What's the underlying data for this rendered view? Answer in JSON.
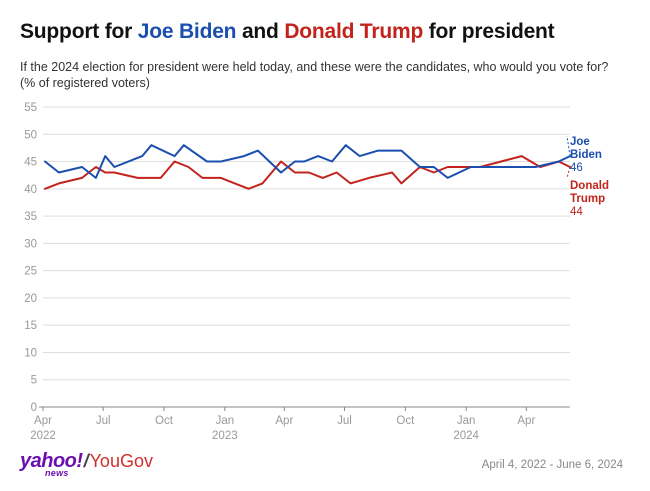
{
  "header": {
    "title_prefix": "Support for ",
    "title_biden": "Joe Biden",
    "title_mid": " and ",
    "title_trump": "Donald Trump",
    "title_suffix": " for president",
    "subtitle_line1": "If the 2024 election for president were held today, and these were the candidates, who would you vote for?",
    "subtitle_line2": "(% of registered voters)"
  },
  "footer": {
    "logo_yahoo": "yahoo!",
    "logo_news": "news",
    "logo_slash": "/",
    "logo_yougov": "YouGov",
    "date_range": "April 4, 2022 - June 6, 2024"
  },
  "colors": {
    "biden": "#1a4fb0",
    "trump": "#c3231d",
    "grid": "#dddddd",
    "axis": "#888888"
  },
  "chart_data": {
    "type": "line",
    "title": "Support for Joe Biden and Donald Trump for president",
    "ylabel": "% of registered voters",
    "ylim": [
      0,
      55
    ],
    "yticks": [
      0,
      5,
      10,
      15,
      20,
      25,
      30,
      35,
      40,
      45,
      50,
      55
    ],
    "xlim": [
      "2022-04-01",
      "2024-06-06"
    ],
    "xticks": [
      {
        "date": "2022-04-01",
        "label": "Apr",
        "year": "2022"
      },
      {
        "date": "2022-07-01",
        "label": "Jul",
        "year": ""
      },
      {
        "date": "2022-10-01",
        "label": "Oct",
        "year": ""
      },
      {
        "date": "2023-01-01",
        "label": "Jan",
        "year": "2023"
      },
      {
        "date": "2023-04-01",
        "label": "Apr",
        "year": ""
      },
      {
        "date": "2023-07-01",
        "label": "Jul",
        "year": ""
      },
      {
        "date": "2023-10-01",
        "label": "Oct",
        "year": ""
      },
      {
        "date": "2024-01-01",
        "label": "Jan",
        "year": "2024"
      },
      {
        "date": "2024-04-01",
        "label": "Apr",
        "year": ""
      }
    ],
    "grid": true,
    "series": [
      {
        "name": "Joe Biden",
        "label_line1": "Joe",
        "label_line2": "Biden",
        "end_value": "46",
        "points": [
          [
            "2022-04-04",
            45
          ],
          [
            "2022-04-25",
            43
          ],
          [
            "2022-05-30",
            44
          ],
          [
            "2022-06-20",
            42
          ],
          [
            "2022-07-04",
            46
          ],
          [
            "2022-07-18",
            44
          ],
          [
            "2022-08-29",
            46
          ],
          [
            "2022-09-12",
            48
          ],
          [
            "2022-10-17",
            46
          ],
          [
            "2022-10-31",
            48
          ],
          [
            "2022-12-05",
            45
          ],
          [
            "2022-12-26",
            45
          ],
          [
            "2023-01-30",
            46
          ],
          [
            "2023-02-20",
            47
          ],
          [
            "2023-03-27",
            43
          ],
          [
            "2023-04-17",
            45
          ],
          [
            "2023-05-01",
            45
          ],
          [
            "2023-05-22",
            46
          ],
          [
            "2023-06-12",
            45
          ],
          [
            "2023-07-03",
            48
          ],
          [
            "2023-07-24",
            46
          ],
          [
            "2023-08-21",
            47
          ],
          [
            "2023-09-25",
            47
          ],
          [
            "2023-10-23",
            44
          ],
          [
            "2023-11-13",
            44
          ],
          [
            "2023-12-04",
            42
          ],
          [
            "2024-01-08",
            44
          ],
          [
            "2024-04-15",
            44
          ],
          [
            "2024-05-20",
            45
          ],
          [
            "2024-06-06",
            46
          ]
        ]
      },
      {
        "name": "Donald Trump",
        "label_line1": "Donald",
        "label_line2": "Trump",
        "end_value": "44",
        "points": [
          [
            "2022-04-04",
            40
          ],
          [
            "2022-04-25",
            41
          ],
          [
            "2022-05-30",
            42
          ],
          [
            "2022-06-20",
            44
          ],
          [
            "2022-07-04",
            43
          ],
          [
            "2022-07-18",
            43
          ],
          [
            "2022-08-22",
            42
          ],
          [
            "2022-09-26",
            42
          ],
          [
            "2022-10-17",
            45
          ],
          [
            "2022-11-07",
            44
          ],
          [
            "2022-11-28",
            42
          ],
          [
            "2022-12-26",
            42
          ],
          [
            "2023-01-16",
            41
          ],
          [
            "2023-02-06",
            40
          ],
          [
            "2023-02-27",
            41
          ],
          [
            "2023-03-27",
            45
          ],
          [
            "2023-04-17",
            43
          ],
          [
            "2023-05-08",
            43
          ],
          [
            "2023-05-29",
            42
          ],
          [
            "2023-06-19",
            43
          ],
          [
            "2023-07-10",
            41
          ],
          [
            "2023-08-07",
            42
          ],
          [
            "2023-09-11",
            43
          ],
          [
            "2023-09-25",
            41
          ],
          [
            "2023-10-23",
            44
          ],
          [
            "2023-11-13",
            43
          ],
          [
            "2023-12-04",
            44
          ],
          [
            "2024-01-22",
            44
          ],
          [
            "2024-03-25",
            46
          ],
          [
            "2024-04-22",
            44
          ],
          [
            "2024-05-20",
            45
          ],
          [
            "2024-06-06",
            44
          ]
        ]
      }
    ]
  }
}
